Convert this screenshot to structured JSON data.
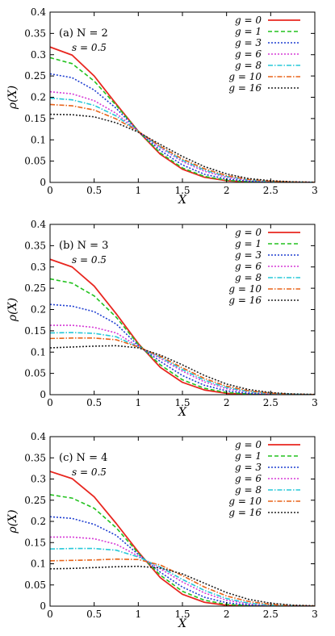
{
  "chart_data": [
    {
      "type": "line",
      "annotation": "(a) N = 2",
      "annotation_label": "(a)",
      "annotation_n": "N = 2",
      "param_text": "s = 0.5",
      "xlabel": "X",
      "ylabel": "ρ(X)",
      "xlim": [
        0,
        3
      ],
      "ylim": [
        0,
        0.4
      ],
      "grid": false,
      "legend_position": "top-right",
      "x_ticks": [
        "0",
        "0.5",
        "1",
        "1.5",
        "2",
        "2.5",
        "3"
      ],
      "y_ticks": [
        "0",
        "0.05",
        "0.1",
        "0.15",
        "0.2",
        "0.25",
        "0.3",
        "0.35",
        "0.4"
      ],
      "series": [
        {
          "name": "g = 0",
          "color": "#e8261f",
          "dash": "solid",
          "x": [
            0,
            0.25,
            0.5,
            0.75,
            1.0,
            1.25,
            1.5,
            1.75,
            2.0,
            2.25,
            2.5,
            2.75,
            3.0
          ],
          "y": [
            0.318,
            0.299,
            0.25,
            0.184,
            0.12,
            0.066,
            0.031,
            0.012,
            0.004,
            0.001,
            0.0,
            0.0,
            0.0
          ]
        },
        {
          "name": "g = 1",
          "color": "#22c21e",
          "dash": "dashed",
          "x": [
            0,
            0.25,
            0.5,
            0.75,
            1.0,
            1.25,
            1.5,
            1.75,
            2.0,
            2.25,
            2.5,
            2.75,
            3.0
          ],
          "y": [
            0.293,
            0.279,
            0.238,
            0.181,
            0.12,
            0.069,
            0.034,
            0.014,
            0.005,
            0.0015,
            0.0004,
            0.0,
            0.0
          ]
        },
        {
          "name": "g = 3",
          "color": "#1f3fd1",
          "dash": "dotted",
          "x": [
            0,
            0.25,
            0.5,
            0.75,
            1.0,
            1.25,
            1.5,
            1.75,
            2.0,
            2.25,
            2.5,
            2.75,
            3.0
          ],
          "y": [
            0.255,
            0.246,
            0.217,
            0.174,
            0.12,
            0.075,
            0.041,
            0.019,
            0.008,
            0.003,
            0.001,
            0.0003,
            0.0
          ]
        },
        {
          "name": "g = 6",
          "color": "#d63ad6",
          "dash": "dotted",
          "x": [
            0,
            0.25,
            0.5,
            0.75,
            1.0,
            1.25,
            1.5,
            1.75,
            2.0,
            2.25,
            2.5,
            2.75,
            3.0
          ],
          "y": [
            0.213,
            0.208,
            0.192,
            0.162,
            0.12,
            0.081,
            0.049,
            0.026,
            0.012,
            0.005,
            0.002,
            0.0006,
            0.0002
          ]
        },
        {
          "name": "g = 8",
          "color": "#26c8d8",
          "dash": "dashdot",
          "x": [
            0,
            0.25,
            0.5,
            0.75,
            1.0,
            1.25,
            1.5,
            1.75,
            2.0,
            2.25,
            2.5,
            2.75,
            3.0
          ],
          "y": [
            0.198,
            0.194,
            0.181,
            0.156,
            0.12,
            0.083,
            0.052,
            0.029,
            0.014,
            0.006,
            0.0024,
            0.0008,
            0.0002
          ]
        },
        {
          "name": "g = 10",
          "color": "#e8641a",
          "dash": "dashdot",
          "x": [
            0,
            0.25,
            0.5,
            0.75,
            1.0,
            1.25,
            1.5,
            1.75,
            2.0,
            2.25,
            2.5,
            2.75,
            3.0
          ],
          "y": [
            0.183,
            0.18,
            0.17,
            0.149,
            0.12,
            0.085,
            0.055,
            0.032,
            0.016,
            0.007,
            0.003,
            0.001,
            0.0003
          ]
        },
        {
          "name": "g = 16",
          "color": "#222222",
          "dash": "dotted",
          "x": [
            0,
            0.25,
            0.5,
            0.75,
            1.0,
            1.25,
            1.5,
            1.75,
            2.0,
            2.25,
            2.5,
            2.75,
            3.0
          ],
          "y": [
            0.16,
            0.159,
            0.154,
            0.14,
            0.118,
            0.089,
            0.061,
            0.037,
            0.02,
            0.009,
            0.004,
            0.0014,
            0.0004
          ]
        }
      ]
    },
    {
      "type": "line",
      "annotation": "(b) N = 3",
      "annotation_label": "(b)",
      "annotation_n": "N = 3",
      "param_text": "s = 0.5",
      "xlabel": "X",
      "ylabel": "ρ(X)",
      "xlim": [
        0,
        3
      ],
      "ylim": [
        0,
        0.4
      ],
      "grid": false,
      "legend_position": "top-right",
      "x_ticks": [
        "0",
        "0.5",
        "1",
        "1.5",
        "2",
        "2.5",
        "3"
      ],
      "y_ticks": [
        "0",
        "0.05",
        "0.1",
        "0.15",
        "0.2",
        "0.25",
        "0.3",
        "0.35",
        "0.4"
      ],
      "series": [
        {
          "name": "g = 0",
          "color": "#e8261f",
          "dash": "solid",
          "x": [
            0,
            0.25,
            0.5,
            0.75,
            1.0,
            1.25,
            1.5,
            1.75,
            2.0,
            2.25,
            2.5,
            2.75,
            3.0
          ],
          "y": [
            0.318,
            0.3,
            0.255,
            0.19,
            0.12,
            0.064,
            0.029,
            0.011,
            0.003,
            0.0008,
            0.0002,
            0.0,
            0.0
          ]
        },
        {
          "name": "g = 1",
          "color": "#22c21e",
          "dash": "dashed",
          "x": [
            0,
            0.25,
            0.5,
            0.75,
            1.0,
            1.25,
            1.5,
            1.75,
            2.0,
            2.25,
            2.5,
            2.75,
            3.0
          ],
          "y": [
            0.272,
            0.262,
            0.232,
            0.182,
            0.118,
            0.07,
            0.035,
            0.015,
            0.005,
            0.0015,
            0.0004,
            0.0,
            0.0
          ]
        },
        {
          "name": "g = 3",
          "color": "#1f3fd1",
          "dash": "dotted",
          "x": [
            0,
            0.25,
            0.5,
            0.75,
            1.0,
            1.25,
            1.5,
            1.75,
            2.0,
            2.25,
            2.5,
            2.75,
            3.0
          ],
          "y": [
            0.212,
            0.208,
            0.195,
            0.166,
            0.115,
            0.078,
            0.045,
            0.022,
            0.009,
            0.003,
            0.001,
            0.0003,
            0.0
          ]
        },
        {
          "name": "g = 6",
          "color": "#d63ad6",
          "dash": "dotted",
          "x": [
            0,
            0.25,
            0.5,
            0.75,
            1.0,
            1.25,
            1.5,
            1.75,
            2.0,
            2.25,
            2.5,
            2.75,
            3.0
          ],
          "y": [
            0.163,
            0.163,
            0.158,
            0.145,
            0.113,
            0.085,
            0.055,
            0.03,
            0.014,
            0.006,
            0.002,
            0.0007,
            0.0002
          ]
        },
        {
          "name": "g = 8",
          "color": "#26c8d8",
          "dash": "dashdot",
          "x": [
            0,
            0.25,
            0.5,
            0.75,
            1.0,
            1.25,
            1.5,
            1.75,
            2.0,
            2.25,
            2.5,
            2.75,
            3.0
          ],
          "y": [
            0.145,
            0.146,
            0.144,
            0.136,
            0.112,
            0.088,
            0.059,
            0.034,
            0.017,
            0.007,
            0.003,
            0.001,
            0.0003
          ]
        },
        {
          "name": "g = 10",
          "color": "#e8641a",
          "dash": "dashdot",
          "x": [
            0,
            0.25,
            0.5,
            0.75,
            1.0,
            1.25,
            1.5,
            1.75,
            2.0,
            2.25,
            2.5,
            2.75,
            3.0
          ],
          "y": [
            0.132,
            0.133,
            0.133,
            0.129,
            0.112,
            0.09,
            0.063,
            0.038,
            0.02,
            0.009,
            0.0035,
            0.0012,
            0.0004
          ]
        },
        {
          "name": "g = 16",
          "color": "#222222",
          "dash": "dotted",
          "x": [
            0,
            0.25,
            0.5,
            0.75,
            1.0,
            1.25,
            1.5,
            1.75,
            2.0,
            2.25,
            2.5,
            2.75,
            3.0
          ],
          "y": [
            0.11,
            0.112,
            0.114,
            0.115,
            0.11,
            0.093,
            0.07,
            0.045,
            0.025,
            0.012,
            0.005,
            0.0018,
            0.0006
          ]
        }
      ]
    },
    {
      "type": "line",
      "annotation": "(c) N = 4",
      "annotation_label": "(c)",
      "annotation_n": "N = 4",
      "param_text": "s = 0.5",
      "xlabel": "X",
      "ylabel": "ρ(X)",
      "xlim": [
        0,
        3
      ],
      "ylim": [
        0,
        0.4
      ],
      "grid": false,
      "legend_position": "top-right",
      "x_ticks": [
        "0",
        "0.5",
        "1",
        "1.5",
        "2",
        "2.5",
        "3"
      ],
      "y_ticks": [
        "0",
        "0.05",
        "0.1",
        "0.15",
        "0.2",
        "0.25",
        "0.3",
        "0.35",
        "0.4"
      ],
      "series": [
        {
          "name": "g = 0",
          "color": "#e8261f",
          "dash": "solid",
          "x": [
            0,
            0.25,
            0.5,
            0.75,
            1.0,
            1.25,
            1.5,
            1.75,
            2.0,
            2.25,
            2.5,
            2.75,
            3.0
          ],
          "y": [
            0.318,
            0.301,
            0.258,
            0.195,
            0.128,
            0.067,
            0.028,
            0.009,
            0.002,
            0.0005,
            0.0001,
            0.0,
            0.0
          ]
        },
        {
          "name": "g = 1",
          "color": "#22c21e",
          "dash": "dashed",
          "x": [
            0,
            0.25,
            0.5,
            0.75,
            1.0,
            1.25,
            1.5,
            1.75,
            2.0,
            2.25,
            2.5,
            2.75,
            3.0
          ],
          "y": [
            0.263,
            0.255,
            0.231,
            0.185,
            0.125,
            0.073,
            0.035,
            0.014,
            0.004,
            0.001,
            0.0002,
            0.0,
            0.0
          ]
        },
        {
          "name": "g = 3",
          "color": "#1f3fd1",
          "dash": "dotted",
          "x": [
            0,
            0.25,
            0.5,
            0.75,
            1.0,
            1.25,
            1.5,
            1.75,
            2.0,
            2.25,
            2.5,
            2.75,
            3.0
          ],
          "y": [
            0.211,
            0.207,
            0.193,
            0.167,
            0.122,
            0.08,
            0.045,
            0.021,
            0.008,
            0.0025,
            0.0007,
            0.0002,
            0.0
          ]
        },
        {
          "name": "g = 6",
          "color": "#d63ad6",
          "dash": "dotted",
          "x": [
            0,
            0.25,
            0.5,
            0.75,
            1.0,
            1.25,
            1.5,
            1.75,
            2.0,
            2.25,
            2.5,
            2.75,
            3.0
          ],
          "y": [
            0.163,
            0.163,
            0.159,
            0.146,
            0.118,
            0.088,
            0.057,
            0.031,
            0.014,
            0.005,
            0.0017,
            0.0005,
            0.0001
          ]
        },
        {
          "name": "g = 8",
          "color": "#26c8d8",
          "dash": "dashdot",
          "x": [
            0,
            0.25,
            0.5,
            0.75,
            1.0,
            1.25,
            1.5,
            1.75,
            2.0,
            2.25,
            2.5,
            2.75,
            3.0
          ],
          "y": [
            0.135,
            0.136,
            0.136,
            0.132,
            0.116,
            0.092,
            0.063,
            0.037,
            0.018,
            0.007,
            0.0025,
            0.0008,
            0.0002
          ]
        },
        {
          "name": "g = 10",
          "color": "#e8641a",
          "dash": "dashdot",
          "x": [
            0,
            0.25,
            0.5,
            0.75,
            1.0,
            1.25,
            1.5,
            1.75,
            2.0,
            2.25,
            2.5,
            2.75,
            3.0
          ],
          "y": [
            0.107,
            0.108,
            0.109,
            0.111,
            0.11,
            0.097,
            0.072,
            0.045,
            0.024,
            0.011,
            0.004,
            0.0013,
            0.0004
          ]
        },
        {
          "name": "g = 16",
          "color": "#222222",
          "dash": "dotted",
          "x": [
            0,
            0.25,
            0.5,
            0.75,
            1.0,
            1.25,
            1.5,
            1.75,
            2.0,
            2.25,
            2.5,
            2.75,
            3.0
          ],
          "y": [
            0.088,
            0.089,
            0.091,
            0.093,
            0.094,
            0.09,
            0.076,
            0.054,
            0.032,
            0.016,
            0.007,
            0.0025,
            0.0008
          ]
        }
      ]
    }
  ]
}
